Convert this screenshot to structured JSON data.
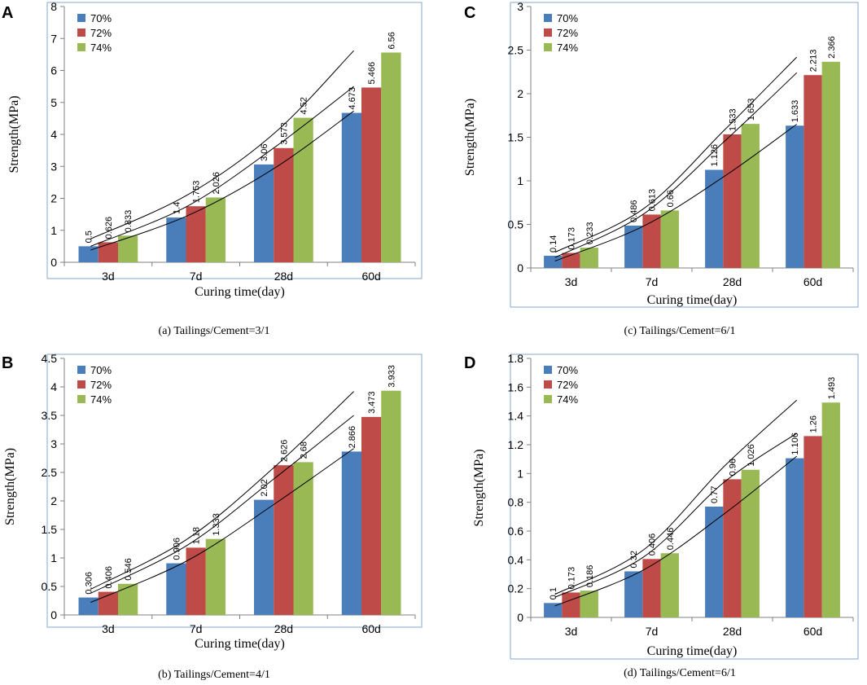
{
  "colors": {
    "s70": "#4A7EBB",
    "s72": "#BE4B48",
    "s74": "#98B954",
    "frame": "#86A7CF",
    "axis": "#808080",
    "trend": "#000000"
  },
  "chart_data": [
    {
      "panel": "A",
      "caption": "(a) Tailings/Cement=3/1",
      "type": "bar",
      "title": "",
      "xlabel": "Curing time(day)",
      "ylabel": "Strength(MPa)",
      "categories": [
        "3d",
        "7d",
        "28d",
        "60d"
      ],
      "ylim": [
        0,
        8
      ],
      "yticks": [
        0,
        1,
        2,
        3,
        4,
        5,
        6,
        7,
        8
      ],
      "ytick_labels": [
        "0",
        "1",
        "2",
        "3",
        "4",
        "5",
        "6",
        "7",
        "8"
      ],
      "legend": "top-left",
      "series": [
        {
          "name": "70%",
          "values": [
            0.5,
            1.4,
            3.06,
            4.673
          ],
          "labels": [
            "0.5",
            "1.4",
            "3.06",
            "4.673"
          ]
        },
        {
          "name": "72%",
          "values": [
            0.626,
            1.753,
            3.573,
            5.466
          ],
          "labels": [
            "0.626",
            "1.753",
            "3.573",
            "5.466"
          ]
        },
        {
          "name": "74%",
          "values": [
            0.833,
            2.026,
            4.52,
            6.56
          ],
          "labels": [
            "0.833",
            "2.026",
            "4.52",
            "6.56"
          ]
        }
      ],
      "trendlines": [
        {
          "type": "polynomial",
          "x_from": 0.8,
          "x_to": 3.8,
          "points": [
            [
              0.8,
              0.38
            ],
            [
              1.9,
              1.45
            ],
            [
              2.9,
              2.95
            ],
            [
              3.8,
              4.73
            ]
          ]
        },
        {
          "type": "polynomial",
          "x_from": 0.8,
          "x_to": 3.8,
          "points": [
            [
              0.8,
              0.5
            ],
            [
              1.9,
              1.75
            ],
            [
              2.9,
              3.6
            ],
            [
              3.8,
              5.5
            ]
          ]
        },
        {
          "type": "polynomial",
          "x_from": 0.8,
          "x_to": 3.8,
          "points": [
            [
              0.8,
              0.73
            ],
            [
              1.9,
              2.1
            ],
            [
              2.9,
              4.05
            ],
            [
              3.8,
              6.62
            ]
          ]
        }
      ]
    },
    {
      "panel": "B",
      "caption": "(b) Tailings/Cement=4/1",
      "type": "bar",
      "title": "",
      "xlabel": "Curing time(day)",
      "ylabel": "Strength(MPa)",
      "categories": [
        "3d",
        "7d",
        "28d",
        "60d"
      ],
      "ylim": [
        0,
        4.5
      ],
      "yticks": [
        0,
        0.5,
        1,
        1.5,
        2,
        2.5,
        3,
        3.5,
        4,
        4.5
      ],
      "ytick_labels": [
        "0",
        "0.5",
        "1",
        "1.5",
        "2",
        "2.5",
        "3",
        "3.5",
        "4",
        "4.5"
      ],
      "legend": "top-left",
      "series": [
        {
          "name": "70%",
          "values": [
            0.306,
            0.906,
            2.02,
            2.866
          ],
          "labels": [
            "0.306",
            "0.906",
            "2.02",
            "2.866"
          ]
        },
        {
          "name": "72%",
          "values": [
            0.406,
            1.18,
            2.626,
            3.473
          ],
          "labels": [
            "0.406",
            "1.18",
            "2.626",
            "3.473"
          ]
        },
        {
          "name": "74%",
          "values": [
            0.546,
            1.333,
            2.68,
            3.933
          ],
          "labels": [
            "0.546",
            "1.333",
            "2.68",
            "3.933"
          ]
        }
      ],
      "trendlines": [
        {
          "type": "polynomial",
          "x_from": 0.8,
          "x_to": 3.8,
          "points": [
            [
              0.8,
              0.22
            ],
            [
              1.9,
              0.95
            ],
            [
              2.9,
              1.95
            ],
            [
              3.8,
              2.92
            ]
          ]
        },
        {
          "type": "polynomial",
          "x_from": 0.8,
          "x_to": 3.8,
          "points": [
            [
              0.8,
              0.38
            ],
            [
              1.9,
              1.22
            ],
            [
              2.9,
              2.4
            ],
            [
              3.8,
              3.5
            ]
          ]
        },
        {
          "type": "polynomial",
          "x_from": 0.8,
          "x_to": 3.8,
          "points": [
            [
              0.8,
              0.45
            ],
            [
              1.9,
              1.33
            ],
            [
              2.9,
              2.6
            ],
            [
              3.8,
              3.92
            ]
          ]
        }
      ]
    },
    {
      "panel": "C",
      "caption": "(c) Tailings/Cement=6/1",
      "type": "bar",
      "title": "",
      "xlabel": "Curing time(day)",
      "ylabel": "Strength(MPa)",
      "categories": [
        "3d",
        "7d",
        "28d",
        "60d"
      ],
      "ylim": [
        0,
        3
      ],
      "yticks": [
        0,
        0.5,
        1,
        1.5,
        2,
        2.5,
        3
      ],
      "ytick_labels": [
        "0",
        "0.5",
        "1",
        "1.5",
        "2",
        "2.5",
        "3"
      ],
      "legend": "top-left",
      "series": [
        {
          "name": "70%",
          "values": [
            0.14,
            0.486,
            1.126,
            1.633
          ],
          "labels": [
            "0.14",
            "0.486",
            "1.126",
            "1.633"
          ]
        },
        {
          "name": "72%",
          "values": [
            0.173,
            0.613,
            1.533,
            2.213
          ],
          "labels": [
            "0.173",
            "0.613",
            "1.533",
            "2.213"
          ]
        },
        {
          "name": "74%",
          "values": [
            0.233,
            0.66,
            1.653,
            2.366
          ],
          "labels": [
            "0.233",
            "0.66",
            "1.653",
            "2.366"
          ]
        }
      ],
      "trendlines": [
        {
          "type": "polynomial",
          "x_from": 0.8,
          "x_to": 3.8,
          "points": [
            [
              0.8,
              0.08
            ],
            [
              1.9,
              0.48
            ],
            [
              2.9,
              1.05
            ],
            [
              3.8,
              1.65
            ]
          ]
        },
        {
          "type": "polynomial",
          "x_from": 0.8,
          "x_to": 3.8,
          "points": [
            [
              0.8,
              0.12
            ],
            [
              1.9,
              0.62
            ],
            [
              2.9,
              1.45
            ],
            [
              3.8,
              2.24
            ]
          ]
        },
        {
          "type": "polynomial",
          "x_from": 0.8,
          "x_to": 3.8,
          "points": [
            [
              0.8,
              0.18
            ],
            [
              1.9,
              0.68
            ],
            [
              2.9,
              1.58
            ],
            [
              3.8,
              2.42
            ]
          ]
        }
      ]
    },
    {
      "panel": "D",
      "caption": "(d) Tailings/Cement=6/1",
      "type": "bar",
      "title": "",
      "xlabel": "Curing time(day)",
      "ylabel": "Strength(MPa)",
      "categories": [
        "3d",
        "7d",
        "28d",
        "60d"
      ],
      "ylim": [
        0,
        1.8
      ],
      "yticks": [
        0,
        0.2,
        0.4,
        0.6,
        0.8,
        1,
        1.2,
        1.4,
        1.6,
        1.8
      ],
      "ytick_labels": [
        "0",
        "0.2",
        "0.4",
        "0.6",
        "0.8",
        "1",
        "1.2",
        "1.4",
        "1.6",
        "1.8"
      ],
      "legend": "top-left",
      "series": [
        {
          "name": "70%",
          "values": [
            0.1,
            0.32,
            0.77,
            1.106
          ],
          "labels": [
            "0.1",
            "0.32",
            "0.77",
            "1.106"
          ]
        },
        {
          "name": "72%",
          "values": [
            0.173,
            0.406,
            0.96,
            1.26
          ],
          "labels": [
            "0.173",
            "0.406",
            "0.96",
            "1.26"
          ]
        },
        {
          "name": "74%",
          "values": [
            0.186,
            0.446,
            1.026,
            1.493
          ],
          "labels": [
            "0.186",
            "0.446",
            "1.026",
            "1.493"
          ]
        }
      ],
      "trendlines": [
        {
          "type": "polynomial",
          "x_from": 0.8,
          "x_to": 3.8,
          "points": [
            [
              0.8,
              0.08
            ],
            [
              1.9,
              0.33
            ],
            [
              2.9,
              0.72
            ],
            [
              3.8,
              1.12
            ]
          ]
        },
        {
          "type": "polynomial",
          "x_from": 0.8,
          "x_to": 3.8,
          "points": [
            [
              0.8,
              0.14
            ],
            [
              1.9,
              0.42
            ],
            [
              2.9,
              0.94
            ],
            [
              3.8,
              1.28
            ]
          ]
        },
        {
          "type": "polynomial",
          "x_from": 0.8,
          "x_to": 3.8,
          "points": [
            [
              0.8,
              0.16
            ],
            [
              1.9,
              0.47
            ],
            [
              2.9,
              1.05
            ],
            [
              3.8,
              1.51
            ]
          ]
        }
      ]
    }
  ]
}
